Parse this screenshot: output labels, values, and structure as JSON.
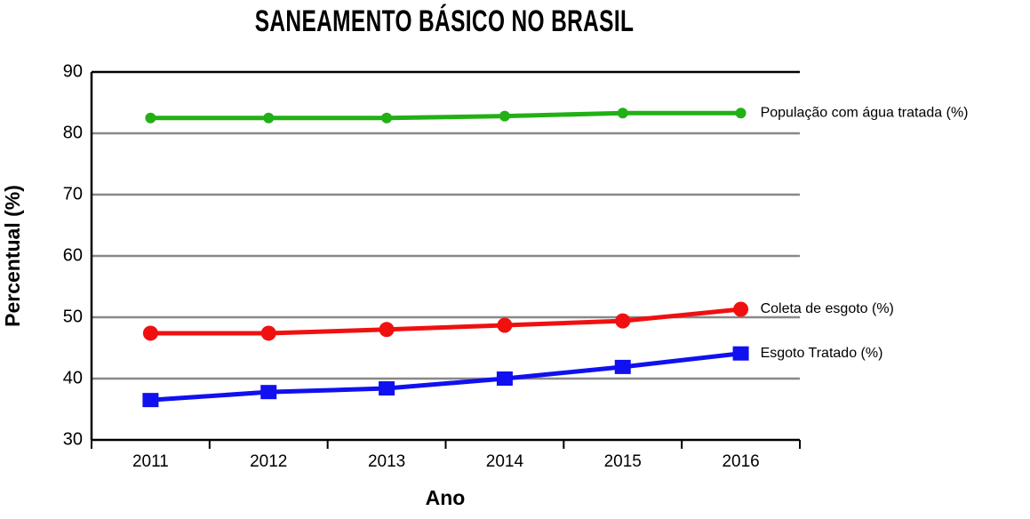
{
  "chart_data": {
    "type": "line",
    "title": "SANEAMENTO BÁSICO NO BRASIL",
    "x_label": "Ano",
    "y_label": "Percentual (%)",
    "categories": [
      "2011",
      "2012",
      "2013",
      "2014",
      "2015",
      "2016"
    ],
    "ylim": [
      30,
      90
    ],
    "yticks": [
      30,
      40,
      50,
      60,
      70,
      80,
      90
    ],
    "grid": true,
    "series": [
      {
        "name": "População com água tratada (%)",
        "color": "#22b014",
        "marker": "dot",
        "values": [
          82.5,
          82.5,
          82.5,
          82.8,
          83.3,
          83.3
        ]
      },
      {
        "name": "Coleta de esgoto (%)",
        "color": "#f01010",
        "marker": "circle",
        "values": [
          47.4,
          47.4,
          48.0,
          48.7,
          49.4,
          51.3
        ]
      },
      {
        "name": "Esgoto Tratado (%)",
        "color": "#1010f0",
        "marker": "square",
        "values": [
          36.5,
          37.8,
          38.4,
          40.0,
          41.9,
          44.1
        ]
      }
    ]
  }
}
